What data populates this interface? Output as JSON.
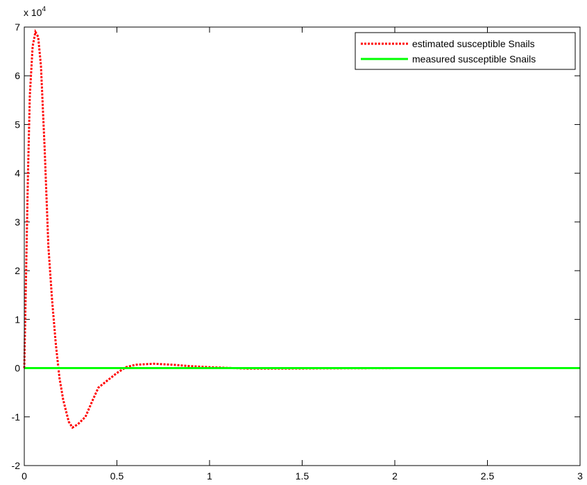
{
  "chart_data": {
    "type": "line",
    "xlim": [
      0,
      3
    ],
    "xticks": [
      0,
      0.5,
      1,
      1.5,
      2,
      2.5,
      3
    ],
    "ylim": [
      -20000,
      70000
    ],
    "yticks": [
      {
        "value": -20000,
        "label": "-2"
      },
      {
        "value": -10000,
        "label": "-1"
      },
      {
        "value": 0,
        "label": "0"
      },
      {
        "value": 10000,
        "label": "1"
      },
      {
        "value": 20000,
        "label": "2"
      },
      {
        "value": 30000,
        "label": "3"
      },
      {
        "value": 40000,
        "label": "4"
      },
      {
        "value": 50000,
        "label": "5"
      },
      {
        "value": 60000,
        "label": "6"
      },
      {
        "value": 70000,
        "label": "7"
      }
    ],
    "y_multiplier": {
      "base": "x 10",
      "exponent": "4"
    },
    "legend": "northeast",
    "series": [
      {
        "name": "estimated susceptible Snails",
        "color": "#ff0000",
        "style": "dotted",
        "x": [
          0,
          0.01,
          0.02,
          0.03,
          0.045,
          0.06,
          0.075,
          0.09,
          0.11,
          0.13,
          0.15,
          0.17,
          0.19,
          0.21,
          0.24,
          0.26,
          0.29,
          0.33,
          0.37,
          0.4,
          0.45,
          0.5,
          0.55,
          0.6,
          0.7,
          0.8,
          0.9,
          1.0,
          1.1,
          1.2,
          1.4,
          1.6,
          2.0,
          3.0
        ],
        "values": [
          0,
          20000,
          40000,
          56000,
          66000,
          69000,
          68000,
          62000,
          45000,
          25000,
          14000,
          5000,
          -2000,
          -6500,
          -11000,
          -12200,
          -11500,
          -10000,
          -6500,
          -4000,
          -2500,
          -1000,
          200,
          700,
          900,
          700,
          400,
          200,
          50,
          -100,
          -100,
          -50,
          0,
          0
        ]
      },
      {
        "name": "measured susceptible Snails",
        "color": "#00ff00",
        "style": "solid",
        "x": [
          0,
          3
        ],
        "values": [
          0,
          0
        ]
      }
    ]
  }
}
